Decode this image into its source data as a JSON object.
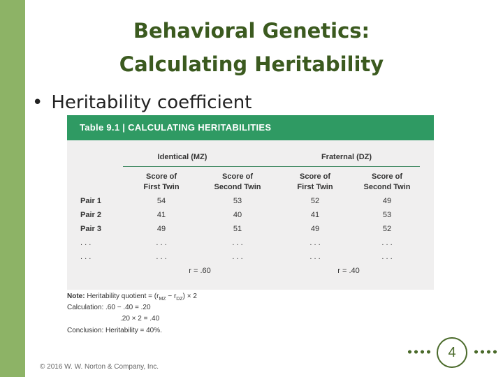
{
  "slide": {
    "title_line1": "Behavioral Genetics:",
    "title_line2": "Calculating Heritability",
    "bullet_symbol": "•",
    "bullet_text": "Heritability coefficient"
  },
  "table": {
    "title": "Table 9.1 | CALCULATING HERITABILITIES",
    "group_mz": "Identical (MZ)",
    "group_dz": "Fraternal (DZ)",
    "col_headers": [
      [
        "Score of",
        "First Twin"
      ],
      [
        "Score of",
        "Second Twin"
      ],
      [
        "Score of",
        "First Twin"
      ],
      [
        "Score of",
        "Second Twin"
      ]
    ],
    "rows": [
      {
        "label": "Pair 1",
        "values": [
          "54",
          "53",
          "52",
          "49"
        ]
      },
      {
        "label": "Pair 2",
        "values": [
          "41",
          "40",
          "41",
          "53"
        ]
      },
      {
        "label": "Pair 3",
        "values": [
          "49",
          "51",
          "49",
          "52"
        ]
      },
      {
        "label": ". . .",
        "values": [
          ". . .",
          ". . .",
          ". . .",
          ". . ."
        ]
      },
      {
        "label": ". . .",
        "values": [
          ". . .",
          ". . .",
          ". . .",
          ". . ."
        ]
      }
    ],
    "r_mz": "r = .60",
    "r_dz": "r = .40"
  },
  "notes": {
    "note_label": "Note:",
    "note_text": "Heritability quotient = (r",
    "note_sub_mz": "MZ",
    "note_mid": " − r",
    "note_sub_dz": "DZ",
    "note_end": ") × 2",
    "calc_line": "Calculation: .60 − .40 = .20",
    "calc_line2": ".20 × 2 = .40",
    "conclusion": "Conclusion: Heritability = 40%."
  },
  "footer": {
    "copyright": "© 2016 W. W. Norton & Company, Inc."
  },
  "page": {
    "number": "4"
  },
  "colors": {
    "accent_green": "#2f9a63",
    "side_bar": "#8db366",
    "title_color": "#3b5a1f"
  }
}
